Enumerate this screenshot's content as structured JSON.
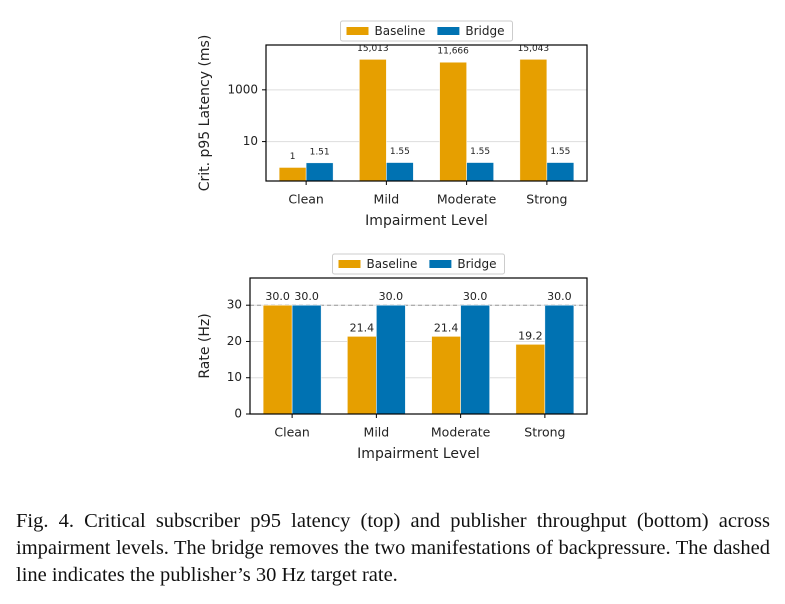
{
  "chart_data": [
    {
      "type": "bar",
      "log": true,
      "grid": true,
      "legend": "upper center",
      "ylabel": "Crit. p95 Latency (ms)",
      "xlabel": "Impairment Level",
      "categories": [
        "Clean",
        "Mild",
        "Moderate",
        "Strong"
      ],
      "series": [
        {
          "name": "Baseline",
          "color": "#E69F00",
          "values": [
            1,
            15013,
            11666,
            15043
          ],
          "value_labels": [
            "1",
            "15,013",
            "11,666",
            "15,043"
          ]
        },
        {
          "name": "Bridge",
          "color": "#0072B2",
          "values": [
            1.51,
            1.55,
            1.55,
            1.55
          ]
        }
      ],
      "ylim": [
        0.3,
        54000
      ],
      "yticks": [
        10,
        1000
      ]
    },
    {
      "type": "bar",
      "log": false,
      "grid": true,
      "legend": "upper center",
      "ylabel": "Rate (Hz)",
      "xlabel": "Impairment Level",
      "categories": [
        "Clean",
        "Mild",
        "Moderate",
        "Strong"
      ],
      "series": [
        {
          "name": "Baseline",
          "color": "#E69F00",
          "values": [
            30,
            21.4,
            21.4,
            19.2
          ],
          "value_labels": [
            "30.0",
            "21.4",
            "21.4",
            "19.2"
          ]
        },
        {
          "name": "Bridge",
          "color": "#0072B2",
          "values": [
            30,
            30,
            30,
            30
          ],
          "value_labels": [
            "30.0",
            "30.0",
            "30.0",
            "30.0"
          ]
        }
      ],
      "ylim": [
        0,
        37.5
      ],
      "yticks": [
        0,
        10,
        20,
        30
      ],
      "hline": 30
    }
  ],
  "caption": "Fig. 4.  Critical subscriber p95 latency (top) and publisher throughput (bottom) across impairment levels. The bridge removes the two manifestations of backpressure. The dashed line indicates the publisher’s 30 Hz target rate."
}
